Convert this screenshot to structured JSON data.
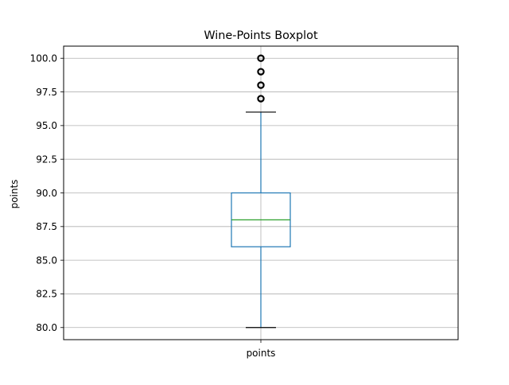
{
  "chart_data": {
    "type": "boxplot",
    "title": "Wine-Points Boxplot",
    "xlabel": "",
    "ylabel": "points",
    "categories": [
      "points"
    ],
    "boxes": [
      {
        "label": "points",
        "whisker_low": 80,
        "q1": 86,
        "median": 88,
        "q3": 90,
        "whisker_high": 96,
        "outliers": [
          97,
          98,
          99,
          100
        ]
      }
    ],
    "ylim": [
      79.1,
      100.9
    ],
    "yticks": [
      80.0,
      82.5,
      85.0,
      87.5,
      90.0,
      92.5,
      95.0,
      97.5,
      100.0
    ],
    "ytick_labels": [
      "80.0",
      "82.5",
      "85.0",
      "87.5",
      "90.0",
      "92.5",
      "95.0",
      "97.5",
      "100.0"
    ],
    "grid": true,
    "colors": {
      "box": "#1f77b4",
      "median": "#2ca02c",
      "whisker": "#1f77b4",
      "cap": "#000000",
      "flier": "#000000",
      "grid": "#b0b0b0"
    }
  }
}
